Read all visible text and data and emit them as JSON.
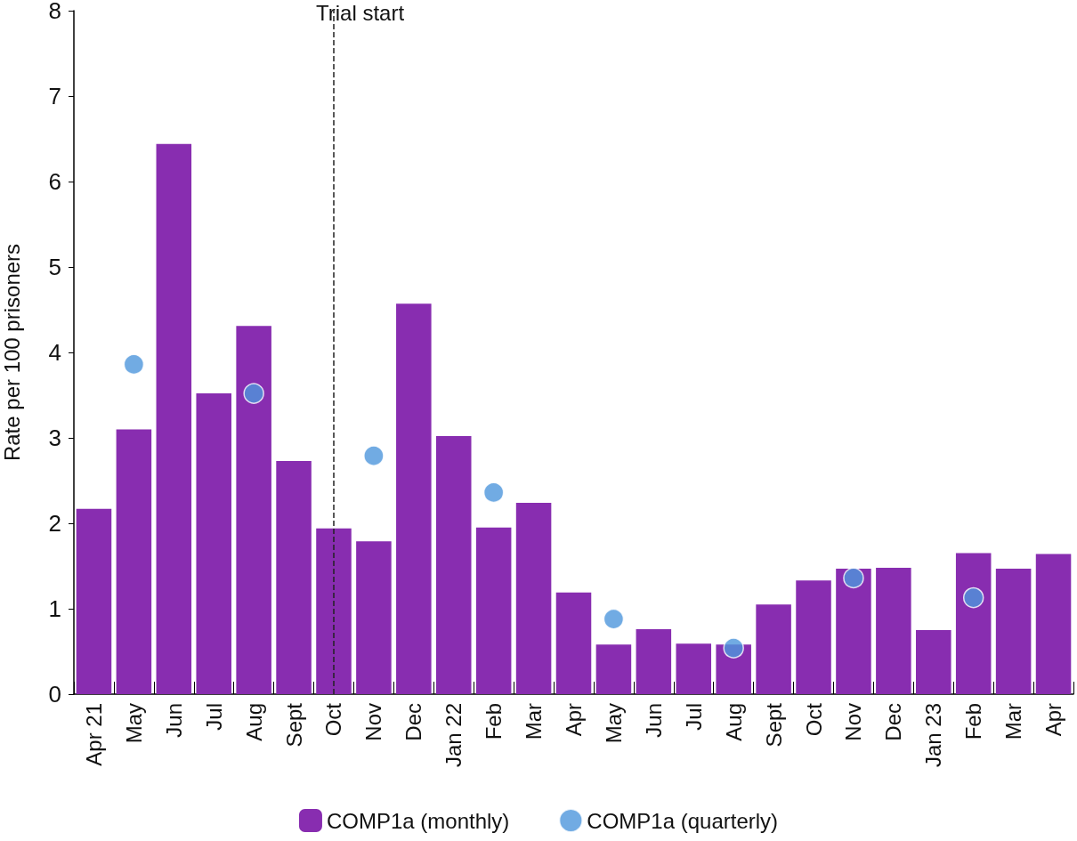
{
  "chart_data": {
    "type": "bar",
    "ylabel": "Rate per 100 prisoners",
    "categories": [
      "Apr 21",
      "May",
      "Jun",
      "Jul",
      "Aug",
      "Sept",
      "Oct",
      "Nov",
      "Dec",
      "Jan 22",
      "Feb",
      "Mar",
      "Apr",
      "May",
      "Jun",
      "Jul",
      "Aug",
      "Sept",
      "Oct",
      "Nov",
      "Dec",
      "Jan 23",
      "Feb",
      "Mar",
      "Apr"
    ],
    "series": [
      {
        "name": "COMP1a (monthly)",
        "color": "#882db0",
        "values": [
          2.17,
          3.1,
          6.44,
          3.52,
          4.31,
          2.73,
          1.94,
          1.79,
          4.57,
          3.02,
          1.95,
          2.24,
          1.19,
          0.58,
          0.76,
          0.59,
          0.58,
          1.05,
          1.33,
          1.47,
          1.48,
          0.75,
          1.65,
          1.47,
          1.64
        ]
      },
      {
        "name": "COMP1a (quarterly)",
        "type": "scatter",
        "color": "#4d96dc",
        "marker": "circle",
        "values": [
          null,
          3.86,
          null,
          null,
          3.52,
          null,
          null,
          2.79,
          null,
          null,
          2.36,
          null,
          null,
          0.88,
          null,
          null,
          0.54,
          null,
          null,
          1.36,
          null,
          null,
          1.13,
          null,
          null
        ]
      }
    ],
    "ylim": [
      0,
      8
    ],
    "yticks": [
      0,
      1,
      2,
      3,
      4,
      5,
      6,
      7,
      8
    ],
    "legend": "bottom",
    "ref_lines": [
      {
        "axis": "x",
        "value": "Oct",
        "label": "Trial start",
        "line_style": "dashed",
        "color": "#222222"
      }
    ]
  }
}
